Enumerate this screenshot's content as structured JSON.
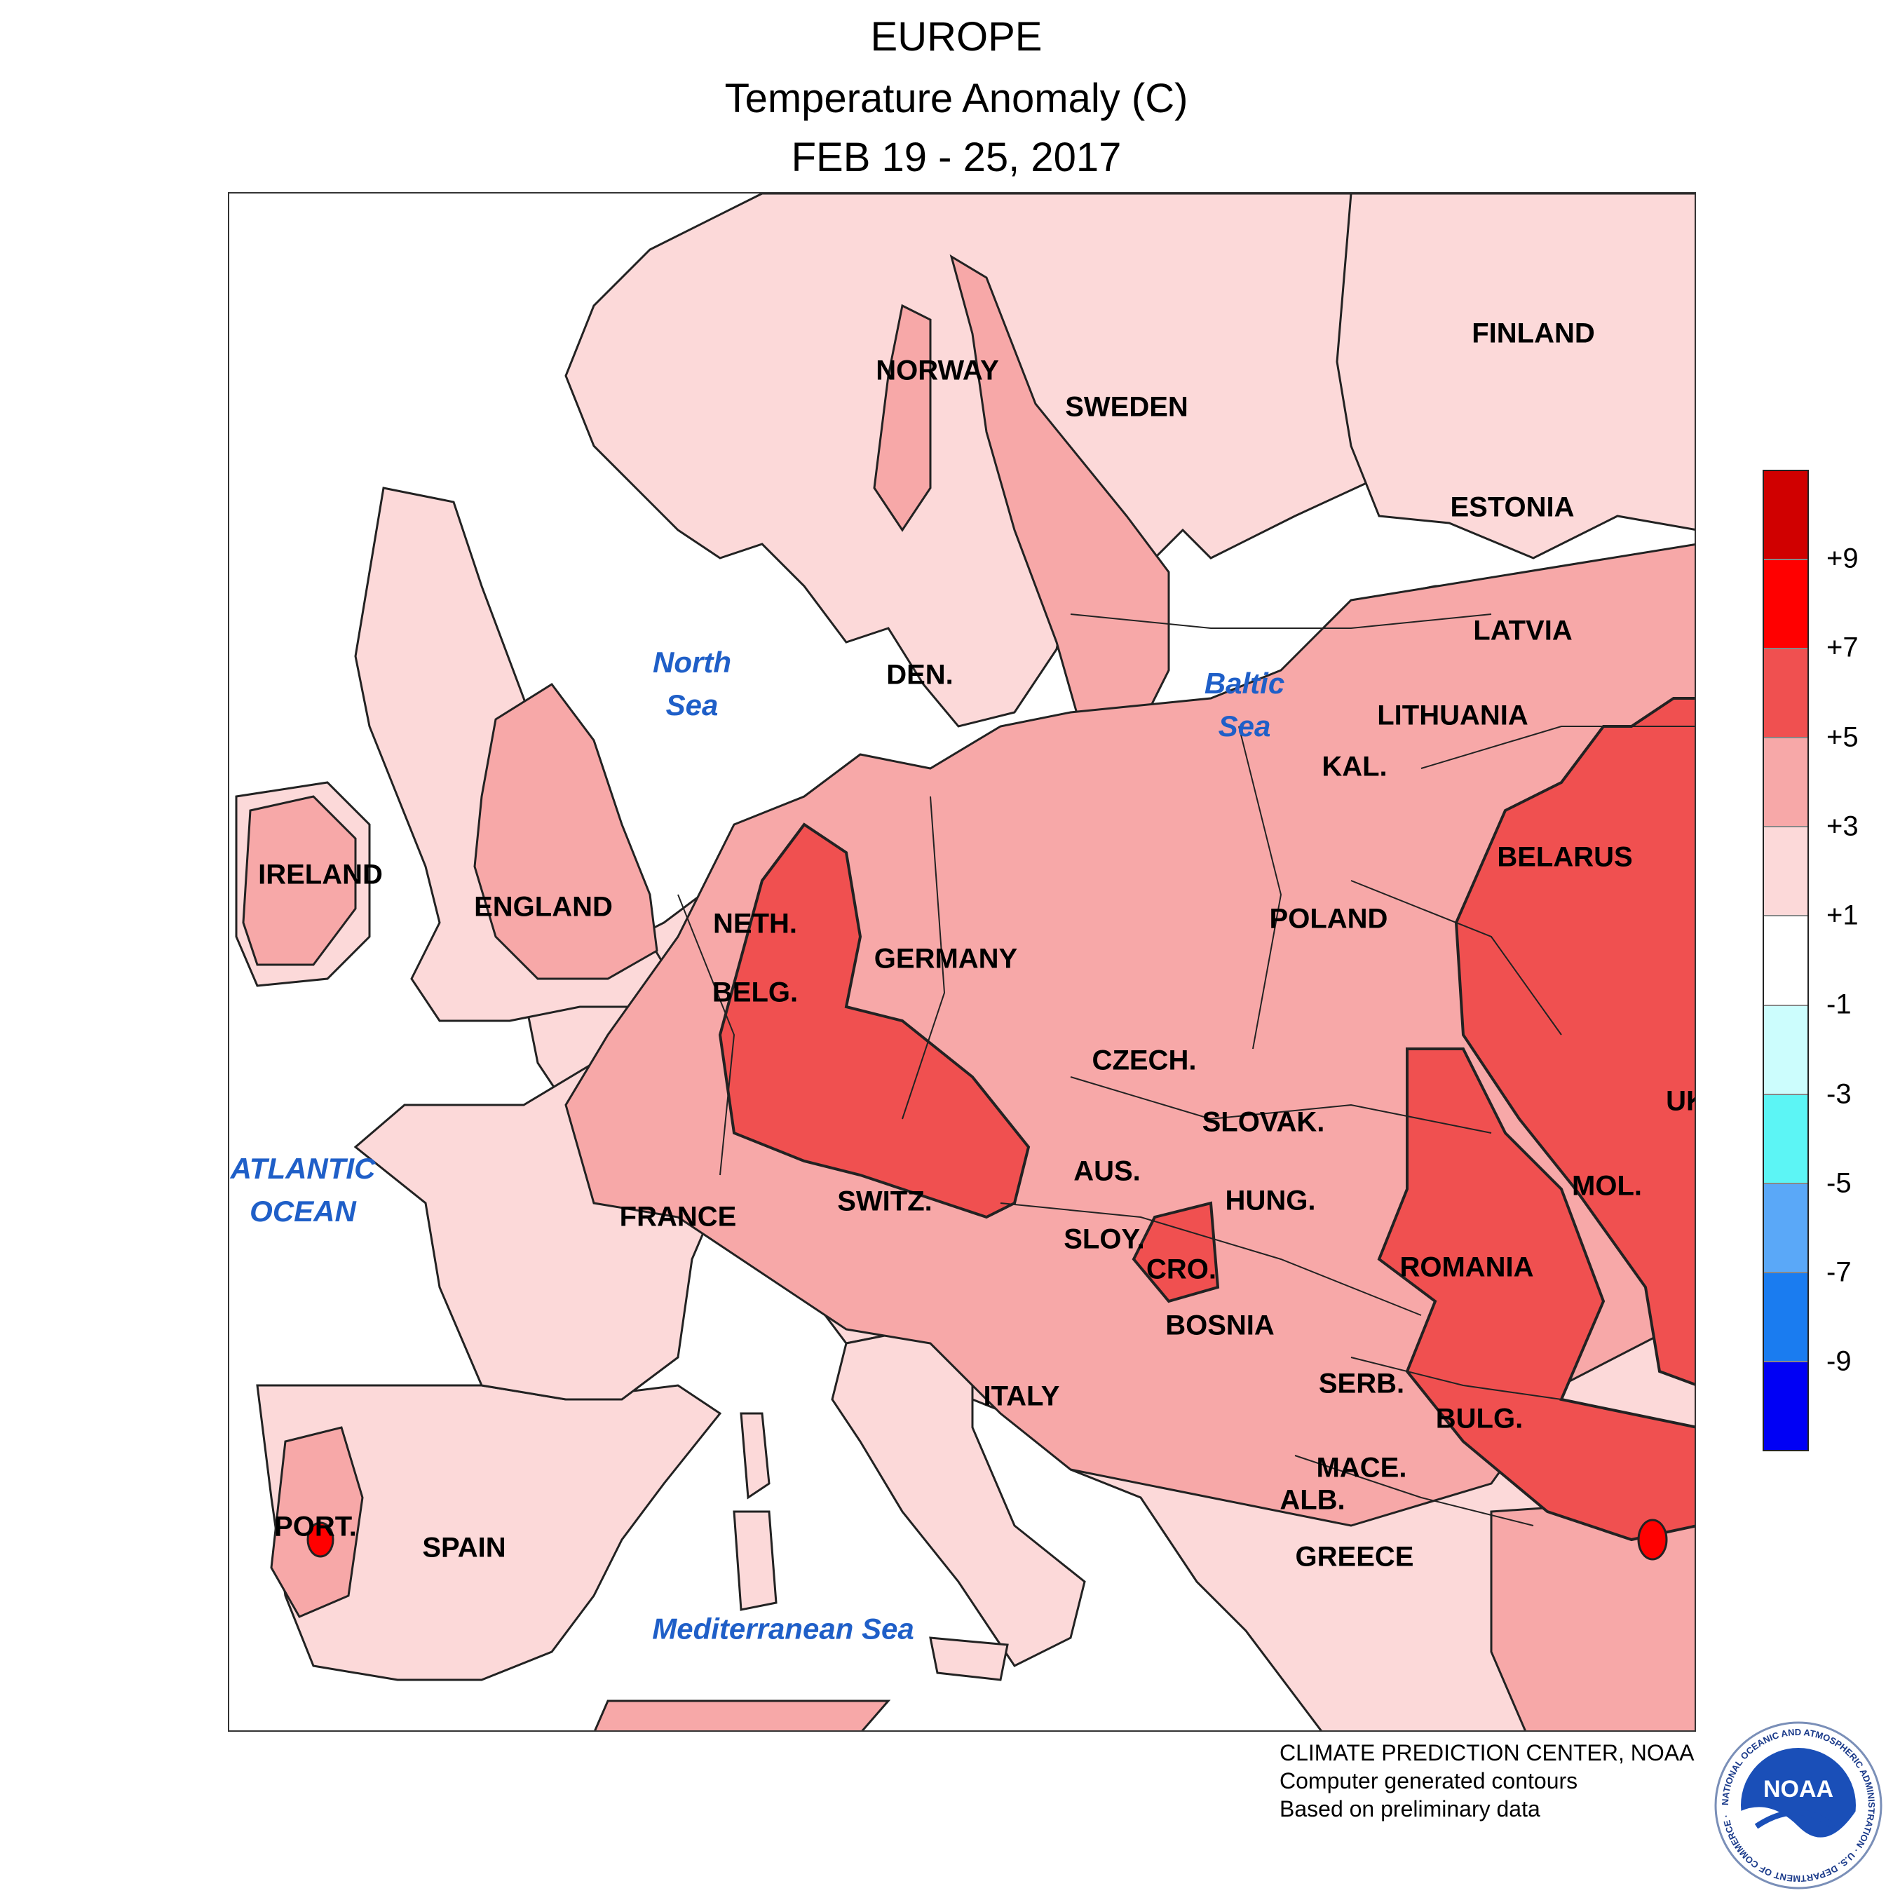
{
  "title": {
    "line1": "EUROPE",
    "line2": "Temperature Anomaly (C)",
    "line3": "FEB 19 - 25, 2017"
  },
  "map": {
    "countries": [
      {
        "id": "finland",
        "label": "FINLAND"
      },
      {
        "id": "norway",
        "label": "NORWAY"
      },
      {
        "id": "sweden",
        "label": "SWEDEN"
      },
      {
        "id": "estonia",
        "label": "ESTONIA"
      },
      {
        "id": "latvia",
        "label": "LATVIA"
      },
      {
        "id": "lithuania",
        "label": "LITHUANIA"
      },
      {
        "id": "den",
        "label": "DEN."
      },
      {
        "id": "kal",
        "label": "KAL."
      },
      {
        "id": "belarus",
        "label": "BELARUS"
      },
      {
        "id": "ireland",
        "label": "IRELAND"
      },
      {
        "id": "england",
        "label": "ENGLAND"
      },
      {
        "id": "neth",
        "label": "NETH."
      },
      {
        "id": "poland",
        "label": "POLAND"
      },
      {
        "id": "germany",
        "label": "GERMANY"
      },
      {
        "id": "belg",
        "label": "BELG."
      },
      {
        "id": "czech",
        "label": "CZECH."
      },
      {
        "id": "slovak",
        "label": "SLOVAK."
      },
      {
        "id": "uk",
        "label": "UK"
      },
      {
        "id": "aus",
        "label": "AUS."
      },
      {
        "id": "hung",
        "label": "HUNG."
      },
      {
        "id": "mol",
        "label": "MOL."
      },
      {
        "id": "switz",
        "label": "SWITZ."
      },
      {
        "id": "france",
        "label": "FRANCE"
      },
      {
        "id": "sloy",
        "label": "SLOY."
      },
      {
        "id": "cro",
        "label": "CRO."
      },
      {
        "id": "romania",
        "label": "ROMANIA"
      },
      {
        "id": "bosnia",
        "label": "BOSNIA"
      },
      {
        "id": "italy",
        "label": "ITALY"
      },
      {
        "id": "serb",
        "label": "SERB."
      },
      {
        "id": "bulg",
        "label": "BULG."
      },
      {
        "id": "mace",
        "label": "MACE."
      },
      {
        "id": "alb",
        "label": "ALB."
      },
      {
        "id": "port",
        "label": "PORT."
      },
      {
        "id": "spain",
        "label": "SPAIN"
      },
      {
        "id": "greece",
        "label": "GREECE"
      }
    ],
    "seas": [
      {
        "id": "north-sea",
        "line1": "North",
        "line2": "Sea"
      },
      {
        "id": "baltic-sea",
        "line1": "Baltic",
        "line2": "Sea"
      },
      {
        "id": "atlantic-ocean",
        "line1": "ATLANTIC",
        "line2": "OCEAN"
      },
      {
        "id": "mediterranean-sea",
        "line1": "Mediterranean Sea",
        "line2": ""
      }
    ],
    "colors": {
      "ocean": "#ffffff",
      "anomaly_1_3": "#fcd9d9",
      "anomaly_3_5": "#f7a8a8",
      "anomaly_5_7": "#f05050",
      "anomaly_7_9": "#ff0000",
      "anomaly_gt_9": "#d00000",
      "coastline": "#222222"
    }
  },
  "legend": {
    "ticks": [
      "+9",
      "+7",
      "+5",
      "+3",
      "+1",
      "-1",
      "-3",
      "-5",
      "-7",
      "-9"
    ],
    "bins": [
      {
        "range": ">9",
        "color": "#d00000"
      },
      {
        "range": "7 to 9",
        "color": "#ff0000"
      },
      {
        "range": "5 to 7",
        "color": "#f05050"
      },
      {
        "range": "3 to 5",
        "color": "#f7a8a8"
      },
      {
        "range": "1 to 3",
        "color": "#fcd9d9"
      },
      {
        "range": "-1 to 1",
        "color": "#ffffff"
      },
      {
        "range": "-3 to -1",
        "color": "#ccfdfd"
      },
      {
        "range": "-5 to -3",
        "color": "#5cf5f5"
      },
      {
        "range": "-7 to -5",
        "color": "#5aa8f8"
      },
      {
        "range": "-9 to -7",
        "color": "#1a7cf0"
      },
      {
        "range": "<-9",
        "color": "#0000f5"
      }
    ]
  },
  "credits": {
    "line1": "CLIMATE PREDICTION CENTER, NOAA",
    "line2": "Computer generated contours",
    "line3": "Based on preliminary data"
  },
  "logo": {
    "text": "NOAA",
    "ring_text": "NATIONAL OCEANIC AND ATMOSPHERIC ADMINISTRATION · U.S. DEPARTMENT OF COMMERCE ·"
  }
}
